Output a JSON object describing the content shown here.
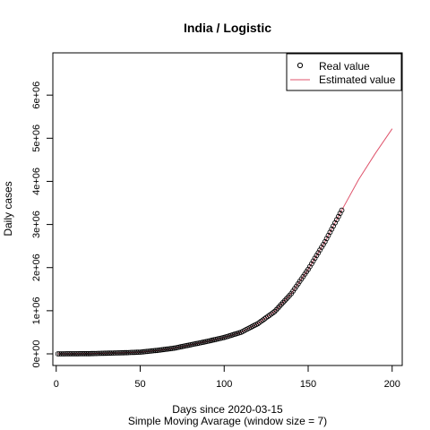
{
  "chart_data": {
    "type": "scatter",
    "title": "India / Logistic",
    "xlabel": "Days since 2020-03-15",
    "subtitle": "Simple Moving Avarage (window size = 7)",
    "ylabel": "Daily cases",
    "xlim": [
      -2,
      206
    ],
    "ylim": [
      -270000,
      6980000
    ],
    "x_ticks": [
      0,
      50,
      100,
      150,
      200
    ],
    "y_ticks": [
      0,
      1000000,
      2000000,
      3000000,
      4000000,
      5000000,
      6000000
    ],
    "x_tick_labels": [
      "0",
      "50",
      "100",
      "150",
      "200"
    ],
    "y_tick_labels": [
      "0e+00",
      "1e+06",
      "2e+06",
      "3e+06",
      "4e+06",
      "5e+06",
      "6e+06"
    ],
    "legend": {
      "position": "top-right",
      "entries": [
        {
          "label": "Real value",
          "marker": "circle"
        },
        {
          "label": "Estimated value",
          "marker": "line"
        }
      ]
    },
    "colors": {
      "real": "#000000",
      "estimated": "#DF536B"
    },
    "series": [
      {
        "name": "Real value",
        "kind": "points",
        "x_start": 1,
        "x_end": 170,
        "anchors": [
          {
            "x": 1,
            "y": 0
          },
          {
            "x": 20,
            "y": 5000
          },
          {
            "x": 40,
            "y": 25000
          },
          {
            "x": 50,
            "y": 40000
          },
          {
            "x": 60,
            "y": 80000
          },
          {
            "x": 70,
            "y": 130000
          },
          {
            "x": 80,
            "y": 210000
          },
          {
            "x": 90,
            "y": 290000
          },
          {
            "x": 100,
            "y": 380000
          },
          {
            "x": 110,
            "y": 500000
          },
          {
            "x": 120,
            "y": 700000
          },
          {
            "x": 130,
            "y": 980000
          },
          {
            "x": 140,
            "y": 1400000
          },
          {
            "x": 150,
            "y": 1960000
          },
          {
            "x": 160,
            "y": 2600000
          },
          {
            "x": 170,
            "y": 3330000
          }
        ]
      },
      {
        "name": "Estimated value",
        "kind": "line",
        "points": [
          {
            "x": 1,
            "y": 0
          },
          {
            "x": 20,
            "y": 5000
          },
          {
            "x": 40,
            "y": 25000
          },
          {
            "x": 50,
            "y": 40000
          },
          {
            "x": 60,
            "y": 80000
          },
          {
            "x": 70,
            "y": 130000
          },
          {
            "x": 80,
            "y": 210000
          },
          {
            "x": 90,
            "y": 290000
          },
          {
            "x": 100,
            "y": 380000
          },
          {
            "x": 110,
            "y": 500000
          },
          {
            "x": 120,
            "y": 700000
          },
          {
            "x": 130,
            "y": 980000
          },
          {
            "x": 140,
            "y": 1400000
          },
          {
            "x": 150,
            "y": 1960000
          },
          {
            "x": 160,
            "y": 2600000
          },
          {
            "x": 170,
            "y": 3330000
          },
          {
            "x": 180,
            "y": 4040000
          },
          {
            "x": 190,
            "y": 4650000
          },
          {
            "x": 200,
            "y": 5220000
          }
        ]
      }
    ]
  }
}
